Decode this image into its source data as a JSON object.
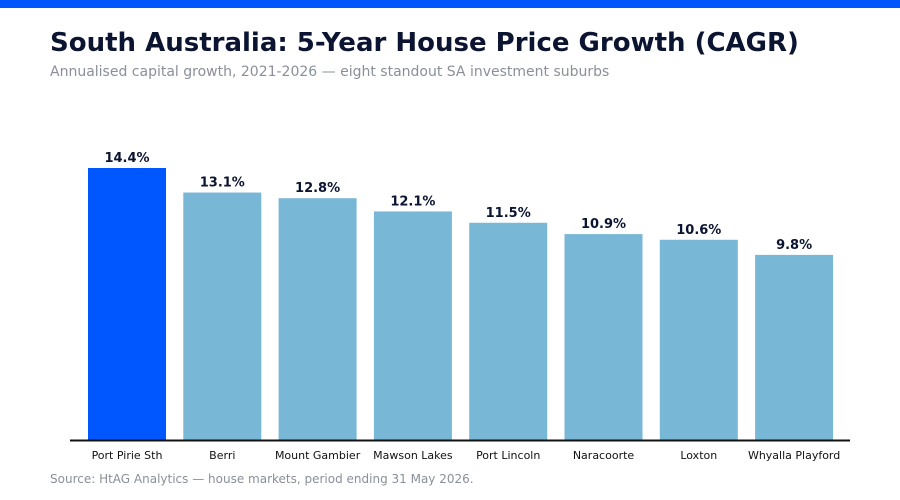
{
  "title": "South Australia: 5-Year House Price Growth (CAGR)",
  "subtitle": "Annualised capital growth, 2021-2026 — eight standout SA investment suburbs",
  "source": "Source: HtAG Analytics — house markets, period ending 31 May 2026.",
  "colors": {
    "accent": "#0057ff",
    "bar": "#78b7d6",
    "highlight": "#0057ff",
    "axis": "#111111",
    "label": "#0b1430"
  },
  "chart_data": {
    "type": "bar",
    "categories": [
      "Port Pirie Sth",
      "Berri",
      "Mount Gambier",
      "Mawson Lakes",
      "Port Lincoln",
      "Naracoorte",
      "Loxton",
      "Whyalla Playford"
    ],
    "values": [
      14.4,
      13.1,
      12.8,
      12.1,
      11.5,
      10.9,
      10.6,
      9.8
    ],
    "data_labels": [
      "14.4%",
      "13.1%",
      "12.8%",
      "12.1%",
      "11.5%",
      "10.9%",
      "10.6%",
      "9.8%"
    ],
    "highlight_index": 0,
    "ylim": [
      0,
      14.4
    ],
    "xlabel": "",
    "ylabel": "",
    "grid": false,
    "legend": "none"
  }
}
